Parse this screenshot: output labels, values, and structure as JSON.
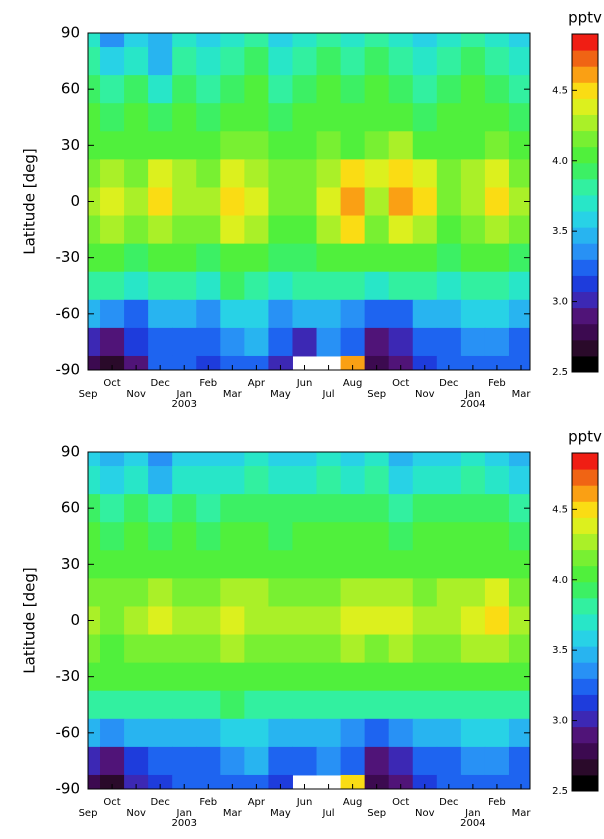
{
  "chart_data": [
    {
      "type": "heatmap",
      "y_label": "Latitude [deg]",
      "categories": [
        "Sep",
        "Oct",
        "Nov",
        "Dec",
        "Jan",
        "Feb",
        "Mar",
        "Apr",
        "May",
        "Jun",
        "Jul",
        "Aug",
        "Sep",
        "Oct",
        "Nov",
        "Dec",
        "Jan",
        "Feb",
        "Mar"
      ],
      "category_groups": [
        null,
        null,
        null,
        null,
        "2003",
        null,
        null,
        null,
        null,
        null,
        null,
        null,
        null,
        null,
        null,
        null,
        "2004",
        null,
        null
      ],
      "y": [
        90,
        75,
        60,
        45,
        30,
        15,
        0,
        -15,
        -30,
        -45,
        -60,
        -75,
        -90
      ],
      "ylim": [
        -90,
        90
      ],
      "yticks": [
        90,
        60,
        30,
        0,
        -30,
        -60,
        -90
      ],
      "z": [
        [
          3.7,
          3.4,
          3.6,
          3.5,
          3.7,
          3.6,
          3.7,
          3.8,
          3.6,
          3.7,
          3.8,
          3.7,
          3.8,
          3.7,
          3.6,
          3.7,
          3.8,
          3.7,
          3.6
        ],
        [
          3.8,
          3.6,
          3.7,
          3.5,
          3.8,
          3.7,
          3.8,
          3.9,
          3.7,
          3.8,
          3.9,
          3.8,
          3.9,
          3.8,
          3.7,
          3.8,
          3.9,
          3.8,
          3.7
        ],
        [
          3.9,
          3.8,
          3.9,
          3.7,
          3.9,
          3.8,
          3.9,
          4.0,
          3.8,
          3.9,
          4.0,
          3.9,
          4.0,
          3.9,
          3.8,
          3.9,
          4.0,
          3.9,
          3.8
        ],
        [
          4.0,
          3.9,
          4.0,
          3.9,
          4.0,
          3.9,
          4.0,
          4.1,
          3.9,
          4.0,
          4.1,
          4.0,
          4.1,
          4.1,
          3.9,
          4.0,
          4.0,
          4.0,
          3.9
        ],
        [
          4.0,
          4.1,
          4.0,
          4.1,
          4.1,
          4.0,
          4.2,
          4.2,
          4.0,
          4.1,
          4.2,
          4.1,
          4.2,
          4.3,
          4.1,
          4.1,
          4.1,
          4.2,
          4.0
        ],
        [
          4.2,
          4.3,
          4.2,
          4.4,
          4.3,
          4.2,
          4.4,
          4.3,
          4.2,
          4.2,
          4.3,
          4.5,
          4.4,
          4.5,
          4.4,
          4.2,
          4.3,
          4.4,
          4.2
        ],
        [
          4.3,
          4.4,
          4.3,
          4.5,
          4.3,
          4.3,
          4.5,
          4.4,
          4.2,
          4.2,
          4.4,
          4.6,
          4.3,
          4.6,
          4.5,
          4.2,
          4.3,
          4.5,
          4.3
        ],
        [
          4.2,
          4.3,
          4.2,
          4.3,
          4.2,
          4.2,
          4.4,
          4.3,
          4.1,
          4.1,
          4.3,
          4.5,
          4.2,
          4.4,
          4.3,
          4.1,
          4.2,
          4.3,
          4.2
        ],
        [
          4.0,
          4.0,
          3.9,
          4.0,
          4.0,
          3.9,
          4.1,
          4.0,
          3.9,
          3.9,
          4.0,
          4.1,
          4.0,
          4.1,
          4.0,
          3.9,
          4.0,
          4.0,
          3.9
        ],
        [
          3.8,
          3.8,
          3.7,
          3.8,
          3.8,
          3.7,
          3.9,
          3.8,
          3.7,
          3.8,
          3.8,
          3.8,
          3.7,
          3.8,
          3.8,
          3.7,
          3.8,
          3.8,
          3.7
        ],
        [
          3.5,
          3.4,
          3.3,
          3.5,
          3.5,
          3.4,
          3.6,
          3.6,
          3.4,
          3.5,
          3.5,
          3.4,
          3.2,
          3.3,
          3.5,
          3.5,
          3.6,
          3.6,
          3.5
        ],
        [
          3.0,
          2.9,
          3.1,
          3.3,
          3.3,
          3.2,
          3.4,
          3.5,
          3.2,
          3.0,
          3.4,
          3.3,
          2.9,
          3.0,
          3.2,
          3.3,
          3.4,
          3.4,
          3.3
        ],
        [
          2.8,
          2.7,
          2.9,
          3.2,
          3.2,
          3.1,
          3.3,
          3.3,
          3.0,
          null,
          null,
          4.6,
          2.8,
          2.9,
          3.1,
          3.2,
          3.3,
          3.3,
          3.2
        ]
      ],
      "colorbar": {
        "label": "pptv",
        "lim": [
          2.5,
          4.9
        ],
        "ticks": [
          2.5,
          {
            "value": 3.0,
            "label": "3.0"
          },
          3.5,
          {
            "value": 4.0,
            "label": "4.0"
          },
          4.5
        ],
        "colors": [
          "#000000",
          "#2a0a2a",
          "#3c0a50",
          "#501478",
          "#3c28b4",
          "#1e3cdc",
          "#1e64f0",
          "#2891f5",
          "#28b4f0",
          "#28d2e6",
          "#28e6c8",
          "#32f0a0",
          "#3cf064",
          "#50f03c",
          "#78f032",
          "#aaf028",
          "#dcf01e",
          "#fadc14",
          "#faa014",
          "#f06414",
          "#f01e14"
        ]
      }
    },
    {
      "type": "heatmap",
      "y_label": "Latitude [deg]",
      "categories": [
        "Sep",
        "Oct",
        "Nov",
        "Dec",
        "Jan",
        "Feb",
        "Mar",
        "Apr",
        "May",
        "Jun",
        "Jul",
        "Aug",
        "Sep",
        "Oct",
        "Nov",
        "Dec",
        "Jan",
        "Feb",
        "Mar"
      ],
      "category_groups": [
        null,
        null,
        null,
        null,
        "2003",
        null,
        null,
        null,
        null,
        null,
        null,
        null,
        null,
        null,
        null,
        null,
        "2004",
        null,
        null
      ],
      "y": [
        90,
        75,
        60,
        45,
        30,
        15,
        0,
        -15,
        -30,
        -45,
        -60,
        -75,
        -90
      ],
      "ylim": [
        -90,
        90
      ],
      "yticks": [
        90,
        60,
        30,
        0,
        -30,
        -60,
        -90
      ],
      "z": [
        [
          3.6,
          3.5,
          3.6,
          3.4,
          3.6,
          3.6,
          3.6,
          3.7,
          3.6,
          3.6,
          3.7,
          3.6,
          3.7,
          3.5,
          3.6,
          3.6,
          3.7,
          3.6,
          3.5
        ],
        [
          3.7,
          3.6,
          3.7,
          3.5,
          3.7,
          3.7,
          3.7,
          3.8,
          3.7,
          3.7,
          3.8,
          3.7,
          3.8,
          3.6,
          3.7,
          3.7,
          3.8,
          3.7,
          3.6
        ],
        [
          3.9,
          3.8,
          3.9,
          3.8,
          3.9,
          3.8,
          3.9,
          3.9,
          3.9,
          3.9,
          3.9,
          3.9,
          3.9,
          3.8,
          3.9,
          3.9,
          3.9,
          3.9,
          3.8
        ],
        [
          4.0,
          3.9,
          4.0,
          3.9,
          4.0,
          3.9,
          4.0,
          4.0,
          3.9,
          4.0,
          4.0,
          4.0,
          4.0,
          3.9,
          4.0,
          4.0,
          4.0,
          4.0,
          3.9
        ],
        [
          4.0,
          4.0,
          4.0,
          4.1,
          4.0,
          4.0,
          4.1,
          4.1,
          4.0,
          4.0,
          4.0,
          4.1,
          4.1,
          4.1,
          4.0,
          4.1,
          4.1,
          4.1,
          4.0
        ],
        [
          4.2,
          4.2,
          4.2,
          4.3,
          4.2,
          4.2,
          4.3,
          4.3,
          4.2,
          4.2,
          4.2,
          4.3,
          4.3,
          4.3,
          4.2,
          4.3,
          4.3,
          4.4,
          4.2
        ],
        [
          4.3,
          4.2,
          4.3,
          4.4,
          4.3,
          4.3,
          4.4,
          4.3,
          4.3,
          4.3,
          4.3,
          4.4,
          4.4,
          4.4,
          4.3,
          4.3,
          4.4,
          4.5,
          4.3
        ],
        [
          4.2,
          4.1,
          4.2,
          4.2,
          4.2,
          4.2,
          4.3,
          4.2,
          4.2,
          4.2,
          4.2,
          4.3,
          4.2,
          4.3,
          4.2,
          4.2,
          4.3,
          4.3,
          4.2
        ],
        [
          4.0,
          4.0,
          4.0,
          4.0,
          4.0,
          4.0,
          4.0,
          4.0,
          4.0,
          4.0,
          4.0,
          4.0,
          4.0,
          4.0,
          4.0,
          4.0,
          4.0,
          4.0,
          4.0
        ],
        [
          3.8,
          3.8,
          3.8,
          3.8,
          3.8,
          3.8,
          3.9,
          3.8,
          3.8,
          3.8,
          3.8,
          3.8,
          3.8,
          3.8,
          3.8,
          3.8,
          3.8,
          3.8,
          3.8
        ],
        [
          3.5,
          3.4,
          3.5,
          3.5,
          3.5,
          3.5,
          3.6,
          3.6,
          3.5,
          3.5,
          3.5,
          3.4,
          3.3,
          3.4,
          3.5,
          3.5,
          3.6,
          3.6,
          3.5
        ],
        [
          3.0,
          2.9,
          3.1,
          3.2,
          3.3,
          3.3,
          3.4,
          3.5,
          3.3,
          3.2,
          3.4,
          3.2,
          2.9,
          3.0,
          3.2,
          3.3,
          3.4,
          3.4,
          3.3
        ],
        [
          2.8,
          2.7,
          3.0,
          3.1,
          3.2,
          3.2,
          3.3,
          3.3,
          3.1,
          null,
          null,
          4.5,
          2.8,
          2.9,
          3.1,
          3.2,
          3.3,
          3.3,
          3.2
        ]
      ],
      "colorbar": {
        "label": "pptv",
        "lim": [
          2.5,
          4.9
        ],
        "ticks": [
          2.5,
          {
            "value": 3.0,
            "label": "3.0"
          },
          3.5,
          {
            "value": 4.0,
            "label": "4.0"
          },
          4.5
        ],
        "colors": [
          "#000000",
          "#2a0a2a",
          "#3c0a50",
          "#501478",
          "#3c28b4",
          "#1e3cdc",
          "#1e64f0",
          "#2891f5",
          "#28b4f0",
          "#28d2e6",
          "#28e6c8",
          "#32f0a0",
          "#3cf064",
          "#50f03c",
          "#78f032",
          "#aaf028",
          "#dcf01e",
          "#fadc14",
          "#faa014",
          "#f06414",
          "#f01e14"
        ]
      }
    }
  ]
}
